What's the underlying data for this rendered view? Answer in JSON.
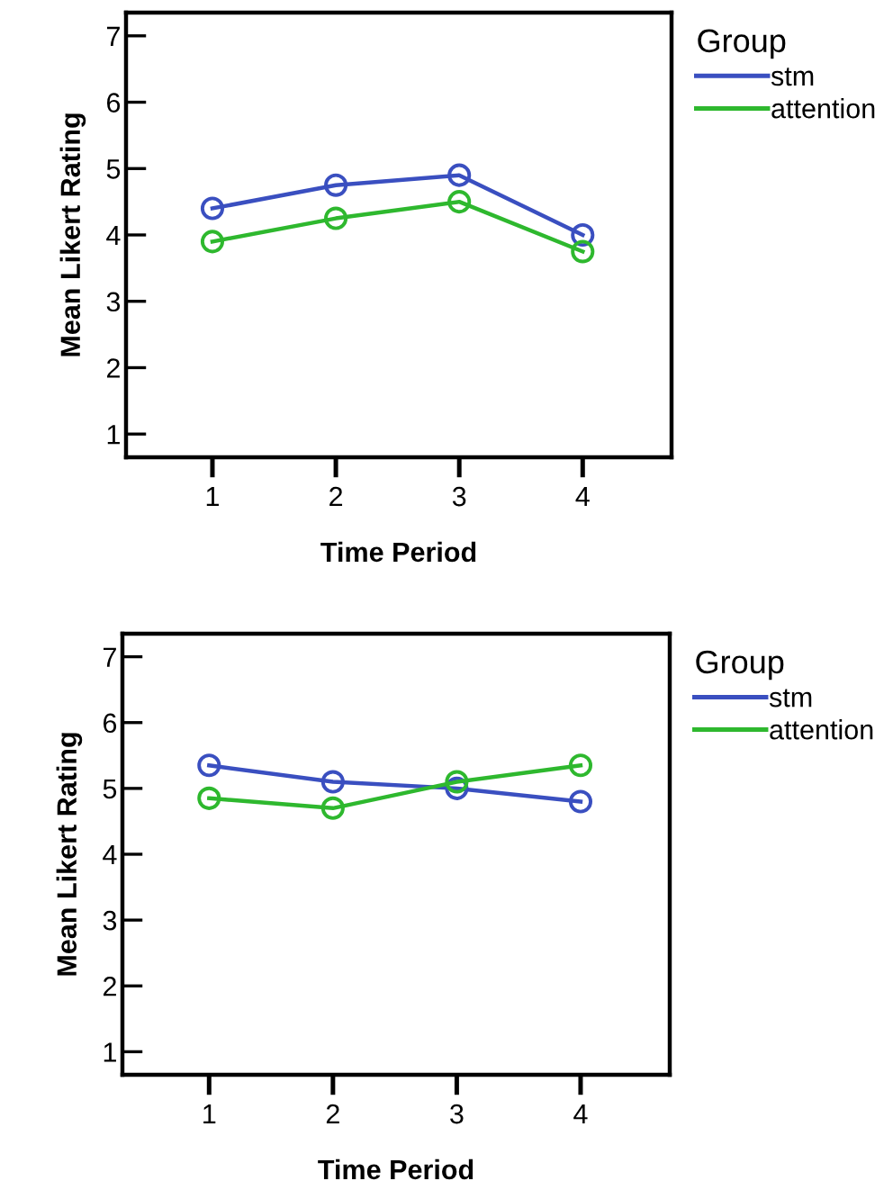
{
  "chart_data": [
    {
      "type": "line",
      "xlabel": "Time Period",
      "ylabel": "Mean Likert Rating",
      "legend_title": "Group",
      "legend": "top right",
      "marker": "circle",
      "categories": [
        "1",
        "2",
        "3",
        "4"
      ],
      "ylim": [
        0.65,
        7.35
      ],
      "yticks": [
        1,
        2,
        3,
        4,
        5,
        6,
        7
      ],
      "series": [
        {
          "name": "stm",
          "color": "#3a4fc0",
          "values": [
            4.4,
            4.75,
            4.9,
            4.0
          ]
        },
        {
          "name": "attention",
          "color": "#2eb82e",
          "values": [
            3.9,
            4.25,
            4.5,
            3.75
          ]
        }
      ]
    },
    {
      "type": "line",
      "xlabel": "Time Period",
      "ylabel": "Mean Likert Rating",
      "legend_title": "Group",
      "legend": "top right",
      "marker": "circle",
      "categories": [
        "1",
        "2",
        "3",
        "4"
      ],
      "ylim": [
        0.65,
        7.35
      ],
      "yticks": [
        1,
        2,
        3,
        4,
        5,
        6,
        7
      ],
      "series": [
        {
          "name": "stm",
          "color": "#3a4fc0",
          "values": [
            5.35,
            5.1,
            5.0,
            4.8
          ]
        },
        {
          "name": "attention",
          "color": "#2eb82e",
          "values": [
            4.85,
            4.7,
            5.1,
            5.35
          ]
        }
      ]
    }
  ]
}
